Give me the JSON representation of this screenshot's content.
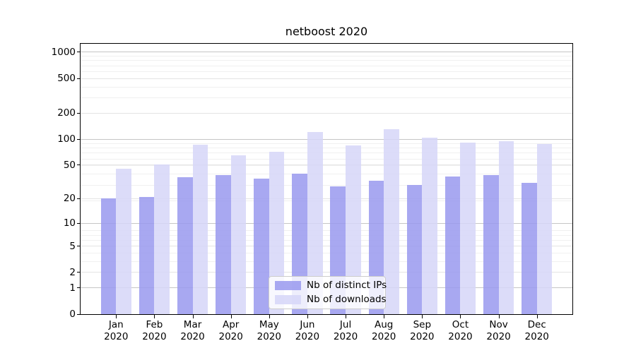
{
  "chart_data": {
    "type": "bar",
    "title": "netboost 2020",
    "categories": [
      "Jan",
      "Feb",
      "Mar",
      "Apr",
      "May",
      "Jun",
      "Jul",
      "Aug",
      "Sep",
      "Oct",
      "Nov",
      "Dec"
    ],
    "category_year": "2020",
    "series": [
      {
        "name": "Nb of distinct IPs",
        "color": "rgba(153,153,238,0.85)",
        "values": [
          20,
          21,
          36,
          38,
          35,
          40,
          28,
          33,
          29,
          37,
          38,
          31
        ]
      },
      {
        "name": "Nb of downloads",
        "color": "rgba(214,214,248,0.85)",
        "values": [
          45,
          51,
          86,
          65,
          72,
          120,
          85,
          131,
          105,
          92,
          94,
          88
        ]
      }
    ],
    "yscale": "log10(1+v)",
    "ylim": [
      0,
      1240
    ],
    "yticks": [
      0,
      1,
      2,
      5,
      10,
      20,
      50,
      100,
      200,
      500,
      1000
    ],
    "major_grid_values": [
      1,
      10,
      100,
      1000
    ],
    "grid": true,
    "legend_position": "lower center",
    "xlabel": "",
    "ylabel": ""
  },
  "styles": {
    "colors": {
      "grid_major": "#c6c6c6",
      "grid_mid": "#e4e4e4",
      "grid_minor": "#f0f0f0",
      "spine": "#000000",
      "text": "#000000",
      "legend_border": "#cccccc",
      "legend_bg": "rgba(255,255,255,0.8)"
    }
  }
}
